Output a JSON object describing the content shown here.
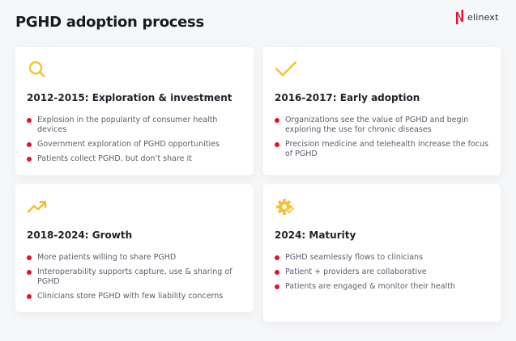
{
  "title": "PGHD adoption process",
  "logo": {
    "text": "elinext",
    "color": "#e8102e"
  },
  "accent_color": "#f2c230",
  "bullet_color": "#e8102e",
  "cards": [
    {
      "icon": "magnifier-icon",
      "heading": "2012-2015: Exploration & investment",
      "items": [
        "Explosion in the popularity of consumer health devices",
        "Government exploration of PGHD opportunities",
        "Patients collect PGHD, but don’t share it"
      ]
    },
    {
      "icon": "checkmark-icon",
      "heading": "2016-2017: Early adoption",
      "items": [
        "Organizations see the value of PGHD and begin exploring the use for chronic diseases",
        "Precision medicine and telehealth increase the focus of PGHD"
      ]
    },
    {
      "icon": "trending-up-icon",
      "heading": "2018-2024: Growth",
      "items": [
        "More patients willing to share PGHD",
        "Interoperability supports capture, use & sharing of PGHD",
        "Clinicians store PGHD with few liability concerns"
      ]
    },
    {
      "icon": "gear-check-icon",
      "heading": "2024: Maturity",
      "items": [
        "PGHD seamlessly flows to clinicians",
        "Patient + providers are collaborative",
        "Patients are engaged & monitor their health"
      ]
    }
  ]
}
